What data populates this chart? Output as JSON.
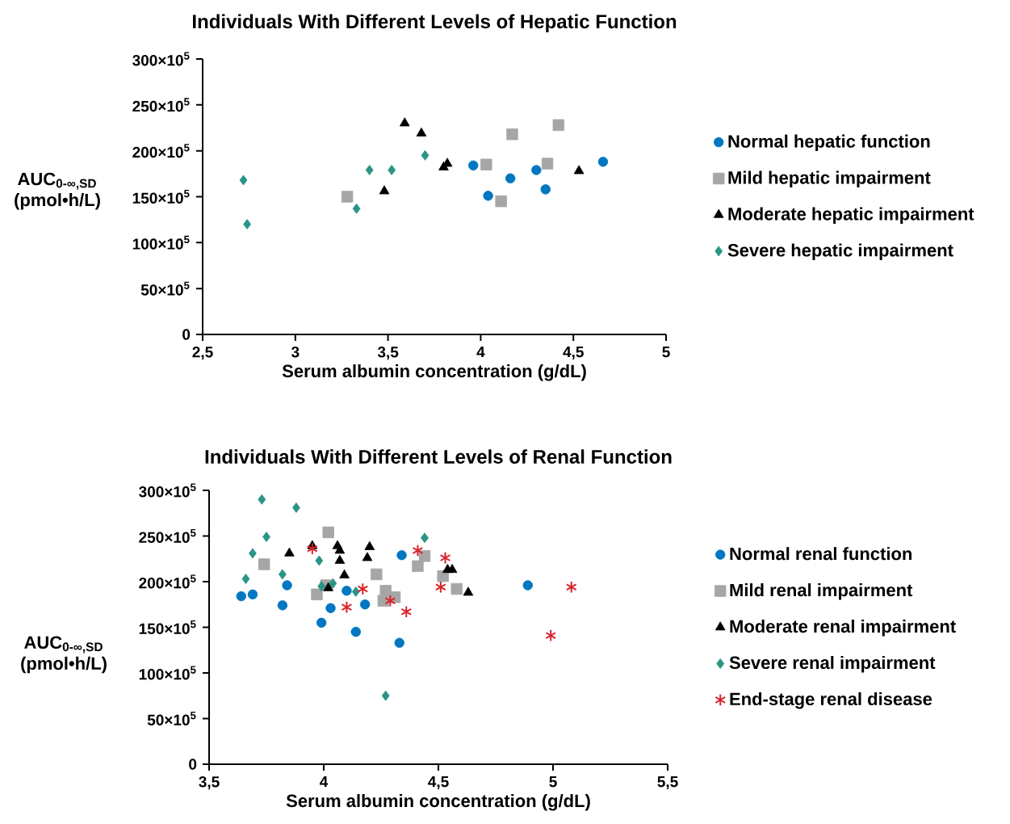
{
  "chart_data": [
    {
      "type": "scatter",
      "title": "Individuals With Different Levels of Hepatic Function",
      "xlabel": "Serum albumin concentration (g/dL)",
      "ylabel": "AUC$_{0-∞,SD}$ (pmol•h/L)",
      "xlim": [
        2.5,
        5
      ],
      "xticks": [
        {
          "value": 2.5,
          "label": "2,5"
        },
        3,
        {
          "value": 3.5,
          "label": "3,5"
        },
        4,
        {
          "value": 4.5,
          "label": "4,5"
        },
        5
      ],
      "ylim": [
        0,
        30000000
      ],
      "yticks": [
        {
          "value": 0,
          "label": "0"
        },
        {
          "value": 5000000,
          "label": "50×10$^{5}$"
        },
        {
          "value": 10000000,
          "label": "100×10$^{5}$"
        },
        {
          "value": 15000000,
          "label": "150×10$^{5}$"
        },
        {
          "value": 20000000,
          "label": "200×10$^{5}$"
        },
        {
          "value": 25000000,
          "label": "250×10$^{5}$"
        },
        {
          "value": 30000000,
          "label": "300×10$^{5}$"
        }
      ],
      "legend": "right",
      "series": [
        {
          "name": "Normal hepatic function",
          "color": "#0077c0",
          "marker": "circle",
          "x": [
            3.96,
            4.04,
            4.16,
            4.3,
            4.35,
            4.66
          ],
          "values": [
            18400000,
            15100000,
            17000000,
            17900000,
            15800000,
            18800000
          ]
        },
        {
          "name": "Mild hepatic impairment",
          "color": "#a6a6a6",
          "marker": "square",
          "x": [
            3.28,
            4.03,
            4.11,
            4.17,
            4.36,
            4.42
          ],
          "values": [
            15000000,
            18500000,
            14500000,
            21800000,
            18600000,
            22800000
          ]
        },
        {
          "name": "Moderate hepatic impairment",
          "color": "#000000",
          "marker": "triangle",
          "x": [
            3.59,
            3.68,
            3.48,
            3.8,
            3.82,
            4.53
          ],
          "values": [
            23000000,
            21900000,
            15600000,
            18200000,
            18600000,
            17800000
          ]
        },
        {
          "name": "Severe hepatic impairment",
          "color": "#2a9486",
          "marker": "diamond",
          "x": [
            2.72,
            2.74,
            3.33,
            3.4,
            3.52,
            3.7
          ],
          "values": [
            16800000,
            12000000,
            13700000,
            17900000,
            17900000,
            19500000
          ]
        }
      ]
    },
    {
      "type": "scatter",
      "title": "Individuals With Different Levels of Renal Function",
      "xlabel": "Serum albumin concentration (g/dL)",
      "ylabel": "AUC$_{0-∞,SD}$ (pmol•h/L)",
      "xlim": [
        3.5,
        5.5
      ],
      "xticks": [
        {
          "value": 3.5,
          "label": "3,5"
        },
        4,
        {
          "value": 4.5,
          "label": "4,5"
        },
        5,
        {
          "value": 5.5,
          "label": "5,5"
        }
      ],
      "ylim": [
        0,
        30000000
      ],
      "yticks": [
        {
          "value": 0,
          "label": "0"
        },
        {
          "value": 5000000,
          "label": "50×10$^{5}$"
        },
        {
          "value": 10000000,
          "label": "100×10$^{5}$"
        },
        {
          "value": 15000000,
          "label": "150×10$^{5}$"
        },
        {
          "value": 20000000,
          "label": "200×10$^{5}$"
        },
        {
          "value": 25000000,
          "label": "250×10$^{5}$"
        },
        {
          "value": 30000000,
          "label": "300×10$^{5}$"
        }
      ],
      "legend": "right",
      "series": [
        {
          "name": "Normal renal function",
          "color": "#0077c0",
          "marker": "circle",
          "x": [
            3.64,
            3.69,
            3.82,
            3.84,
            3.99,
            4.03,
            4.1,
            4.14,
            4.18,
            4.33,
            4.34,
            4.89
          ],
          "values": [
            18400000,
            18600000,
            17400000,
            19600000,
            15500000,
            17100000,
            19000000,
            14500000,
            17500000,
            13300000,
            22900000,
            19600000
          ]
        },
        {
          "name": "Mild renal impairment",
          "color": "#a6a6a6",
          "marker": "square",
          "x": [
            3.74,
            4.02,
            3.97,
            4.01,
            4.23,
            4.27,
            4.26,
            4.31,
            4.41,
            4.44,
            4.52,
            4.58
          ],
          "values": [
            21900000,
            25400000,
            18600000,
            19600000,
            20800000,
            19000000,
            17900000,
            18300000,
            21700000,
            22800000,
            20600000,
            19200000
          ]
        },
        {
          "name": "Moderate renal impairment",
          "color": "#000000",
          "marker": "triangle",
          "x": [
            3.85,
            3.95,
            4.02,
            4.06,
            4.07,
            4.07,
            4.09,
            4.2,
            4.19,
            4.54,
            4.56,
            4.63
          ],
          "values": [
            23100000,
            23900000,
            19300000,
            23900000,
            23400000,
            22300000,
            20700000,
            23800000,
            22600000,
            21300000,
            21300000,
            18800000
          ]
        },
        {
          "name": "Severe renal impairment",
          "color": "#2a9486",
          "marker": "diamond",
          "x": [
            3.73,
            3.88,
            3.75,
            3.69,
            3.66,
            3.82,
            3.98,
            3.99,
            4.04,
            4.14,
            4.27,
            4.44
          ],
          "values": [
            29000000,
            28100000,
            24900000,
            23100000,
            20300000,
            20800000,
            22300000,
            19500000,
            19800000,
            18900000,
            7500000,
            24800000
          ]
        },
        {
          "name": "End-stage renal disease",
          "color": "#d9242b",
          "marker": "cross",
          "x": [
            3.95,
            4.1,
            4.17,
            4.29,
            4.36,
            4.41,
            4.53,
            4.51,
            5.08,
            4.99
          ],
          "values": [
            23600000,
            17200000,
            19200000,
            17900000,
            16700000,
            23400000,
            22600000,
            19400000,
            19400000,
            14100000
          ]
        }
      ]
    }
  ]
}
